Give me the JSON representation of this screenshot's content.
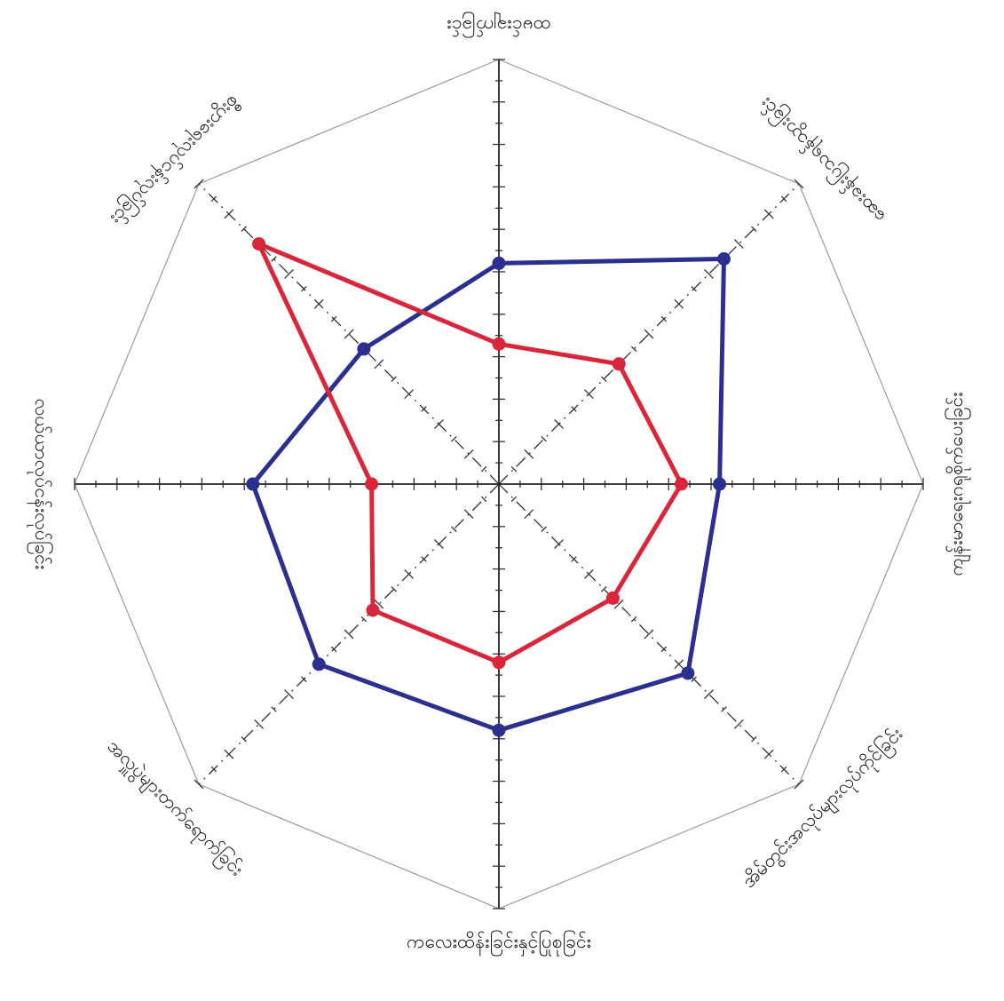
{
  "chart_data": {
    "type": "radar",
    "title": "",
    "axes": [
      "ထမင်းချက်ခြင်း",
      "ဆေးခန်းပြသရန်သွားခြင်း",
      "ကျန်းမာရေးဂရုစိုက်ပေးခြင်း",
      "အိမ်တွင်းအလုပ်များလုပ်ကိုင်ခြင်း",
      "ကလေးထိန်းခြင်းနှင့်ပြုစုခြင်း",
      "အလှူပွဲများတက်ရောက်ခြင်း",
      "လယ်ယာလုပ်ငန်းလုပ်ခြင်း",
      "စီးပွားရေးလုပ်ငန်းလုပ်ခြင်း"
    ],
    "scale": {
      "min": 0,
      "max": 10,
      "ticks": 10
    },
    "grid": "octagon",
    "series": [
      {
        "color": "#2b2f8f",
        "values": [
          5.2,
          7.5,
          5.2,
          6.3,
          5.8,
          6.0,
          5.8,
          4.5
        ]
      },
      {
        "color": "#d9263a",
        "values": [
          3.3,
          4.0,
          4.3,
          3.8,
          4.2,
          4.2,
          3.0,
          8.0
        ]
      }
    ]
  }
}
